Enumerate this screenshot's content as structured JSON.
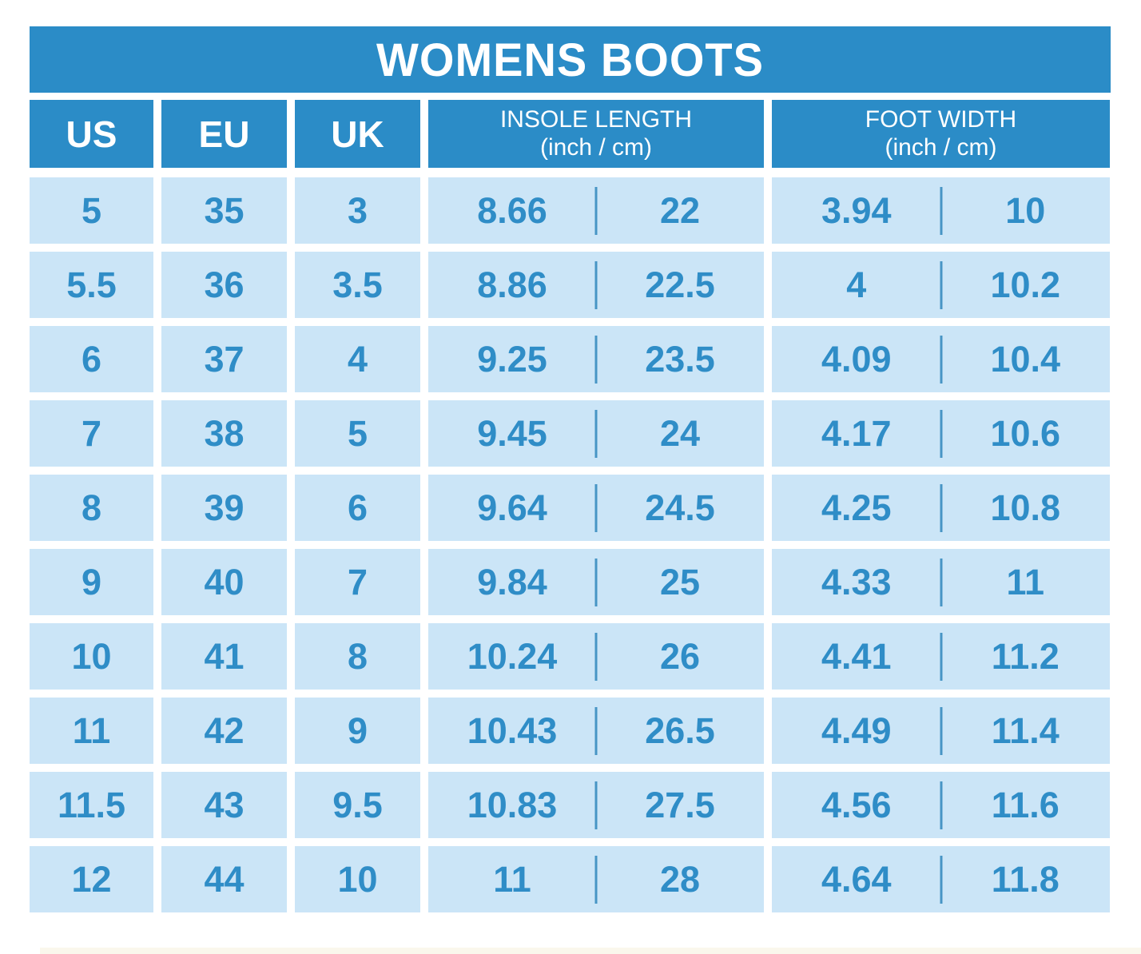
{
  "title": "WOMENS BOOTS",
  "columns": {
    "us": "US",
    "eu": "EU",
    "uk": "UK",
    "insole": {
      "line1": "INSOLE LENGTH",
      "line2": "(inch / cm)"
    },
    "foot": {
      "line1": "FOOT WIDTH",
      "line2": "(inch / cm)"
    }
  },
  "rows": [
    {
      "us": "5",
      "eu": "35",
      "uk": "3",
      "insole_in": "8.66",
      "insole_cm": "22",
      "width_in": "3.94",
      "width_cm": "10"
    },
    {
      "us": "5.5",
      "eu": "36",
      "uk": "3.5",
      "insole_in": "8.86",
      "insole_cm": "22.5",
      "width_in": "4",
      "width_cm": "10.2"
    },
    {
      "us": "6",
      "eu": "37",
      "uk": "4",
      "insole_in": "9.25",
      "insole_cm": "23.5",
      "width_in": "4.09",
      "width_cm": "10.4"
    },
    {
      "us": "7",
      "eu": "38",
      "uk": "5",
      "insole_in": "9.45",
      "insole_cm": "24",
      "width_in": "4.17",
      "width_cm": "10.6"
    },
    {
      "us": "8",
      "eu": "39",
      "uk": "6",
      "insole_in": "9.64",
      "insole_cm": "24.5",
      "width_in": "4.25",
      "width_cm": "10.8"
    },
    {
      "us": "9",
      "eu": "40",
      "uk": "7",
      "insole_in": "9.84",
      "insole_cm": "25",
      "width_in": "4.33",
      "width_cm": "11"
    },
    {
      "us": "10",
      "eu": "41",
      "uk": "8",
      "insole_in": "10.24",
      "insole_cm": "26",
      "width_in": "4.41",
      "width_cm": "11.2"
    },
    {
      "us": "11",
      "eu": "42",
      "uk": "9",
      "insole_in": "10.43",
      "insole_cm": "26.5",
      "width_in": "4.49",
      "width_cm": "11.4"
    },
    {
      "us": "11.5",
      "eu": "43",
      "uk": "9.5",
      "insole_in": "10.83",
      "insole_cm": "27.5",
      "width_in": "4.56",
      "width_cm": "11.6"
    },
    {
      "us": "12",
      "eu": "44",
      "uk": "10",
      "insole_in": "11",
      "insole_cm": "28",
      "width_in": "4.64",
      "width_cm": "11.8"
    }
  ],
  "colors": {
    "header_blue": "#2b8cc7",
    "cell_blue": "#cbe5f7",
    "text_blue": "#2f8dc7",
    "divider_blue": "#4795c5",
    "background": "#ffffff",
    "bottom_strip": "#faf7ec"
  },
  "chart_data": {
    "type": "table",
    "title": "WOMENS BOOTS",
    "columns": [
      "US",
      "EU",
      "UK",
      "INSOLE LENGTH (inch / cm)",
      "FOOT WIDTH (inch / cm)"
    ],
    "rows": [
      [
        "5",
        "35",
        "3",
        "8.66 / 22",
        "3.94 / 10"
      ],
      [
        "5.5",
        "36",
        "3.5",
        "8.86 / 22.5",
        "4 / 10.2"
      ],
      [
        "6",
        "37",
        "4",
        "9.25 / 23.5",
        "4.09 / 10.4"
      ],
      [
        "7",
        "38",
        "5",
        "9.45 / 24",
        "4.17 / 10.6"
      ],
      [
        "8",
        "39",
        "6",
        "9.64 / 24.5",
        "4.25 / 10.8"
      ],
      [
        "9",
        "40",
        "7",
        "9.84 / 25",
        "4.33 / 11"
      ],
      [
        "10",
        "41",
        "8",
        "10.24 / 26",
        "4.41 / 11.2"
      ],
      [
        "11",
        "42",
        "9",
        "10.43 / 26.5",
        "4.49 / 11.4"
      ],
      [
        "11.5",
        "43",
        "9.5",
        "10.83 / 27.5",
        "4.56 / 11.6"
      ],
      [
        "12",
        "44",
        "10",
        "11 / 28",
        "4.64 / 11.8"
      ]
    ]
  }
}
